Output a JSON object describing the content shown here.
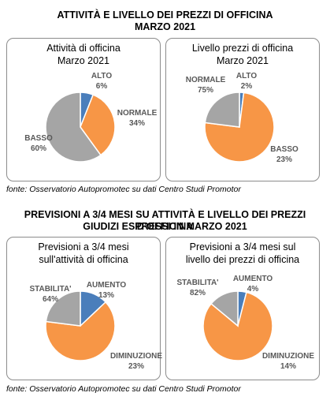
{
  "section1": {
    "title_line1": "ATTIVITÀ E LIVELLO DEI PREZZI DI OFFICINA",
    "title_line2": "MARZO 2021",
    "source": "fonte: Osservatorio Autopromotec su dati Centro Studi Promotor"
  },
  "section2": {
    "title_line1": "PREVISIONI A 3/4 MESI SU ATTIVITÀ E LIVELLO DEI PREZZI D’OFFICINA",
    "title_line2": "GIUDIZI ESPRESSI IN MARZO 2021",
    "source": "fonte: Osservatorio Autopromotec su dati Centro Studi Promotor"
  },
  "colors": {
    "blue": "#4a7ebb",
    "orange": "#f79646",
    "gray": "#a5a5a5",
    "label": "#595959"
  },
  "chart_data": [
    {
      "type": "pie",
      "title_line1": "Attività di officina",
      "title_line2": "Marzo 2021",
      "slices": [
        {
          "label": "ALTO",
          "pct": "6%",
          "value": 6,
          "color": "#4a7ebb"
        },
        {
          "label": "NORMALE",
          "pct": "34%",
          "value": 34,
          "color": "#f79646"
        },
        {
          "label": "BASSO",
          "pct": "60%",
          "value": 60,
          "color": "#a5a5a5"
        }
      ]
    },
    {
      "type": "pie",
      "title_line1": "Livello prezzi di officina",
      "title_line2": "Marzo 2021",
      "slices": [
        {
          "label": "ALTO",
          "pct": "2%",
          "value": 2,
          "color": "#4a7ebb"
        },
        {
          "label": "NORMALE",
          "pct": "75%",
          "value": 75,
          "color": "#f79646"
        },
        {
          "label": "BASSO",
          "pct": "23%",
          "value": 23,
          "color": "#a5a5a5"
        }
      ]
    },
    {
      "type": "pie",
      "title_line1": "Previsioni a 3/4 mesi",
      "title_line2": "sull'attività di officina",
      "slices": [
        {
          "label": "AUMENTO",
          "pct": "13%",
          "value": 13,
          "color": "#4a7ebb"
        },
        {
          "label": "STABILITA'",
          "pct": "64%",
          "value": 64,
          "color": "#f79646"
        },
        {
          "label": "DIMINUZIONE",
          "pct": "23%",
          "value": 23,
          "color": "#a5a5a5"
        }
      ]
    },
    {
      "type": "pie",
      "title_line1": "Previsioni a 3/4 mesi sul",
      "title_line2": "livello dei prezzi di officina",
      "slices": [
        {
          "label": "AUMENTO",
          "pct": "4%",
          "value": 4,
          "color": "#4a7ebb"
        },
        {
          "label": "STABILITA'",
          "pct": "82%",
          "value": 82,
          "color": "#f79646"
        },
        {
          "label": "DIMINUZIONE",
          "pct": "14%",
          "value": 14,
          "color": "#a5a5a5"
        }
      ]
    }
  ]
}
